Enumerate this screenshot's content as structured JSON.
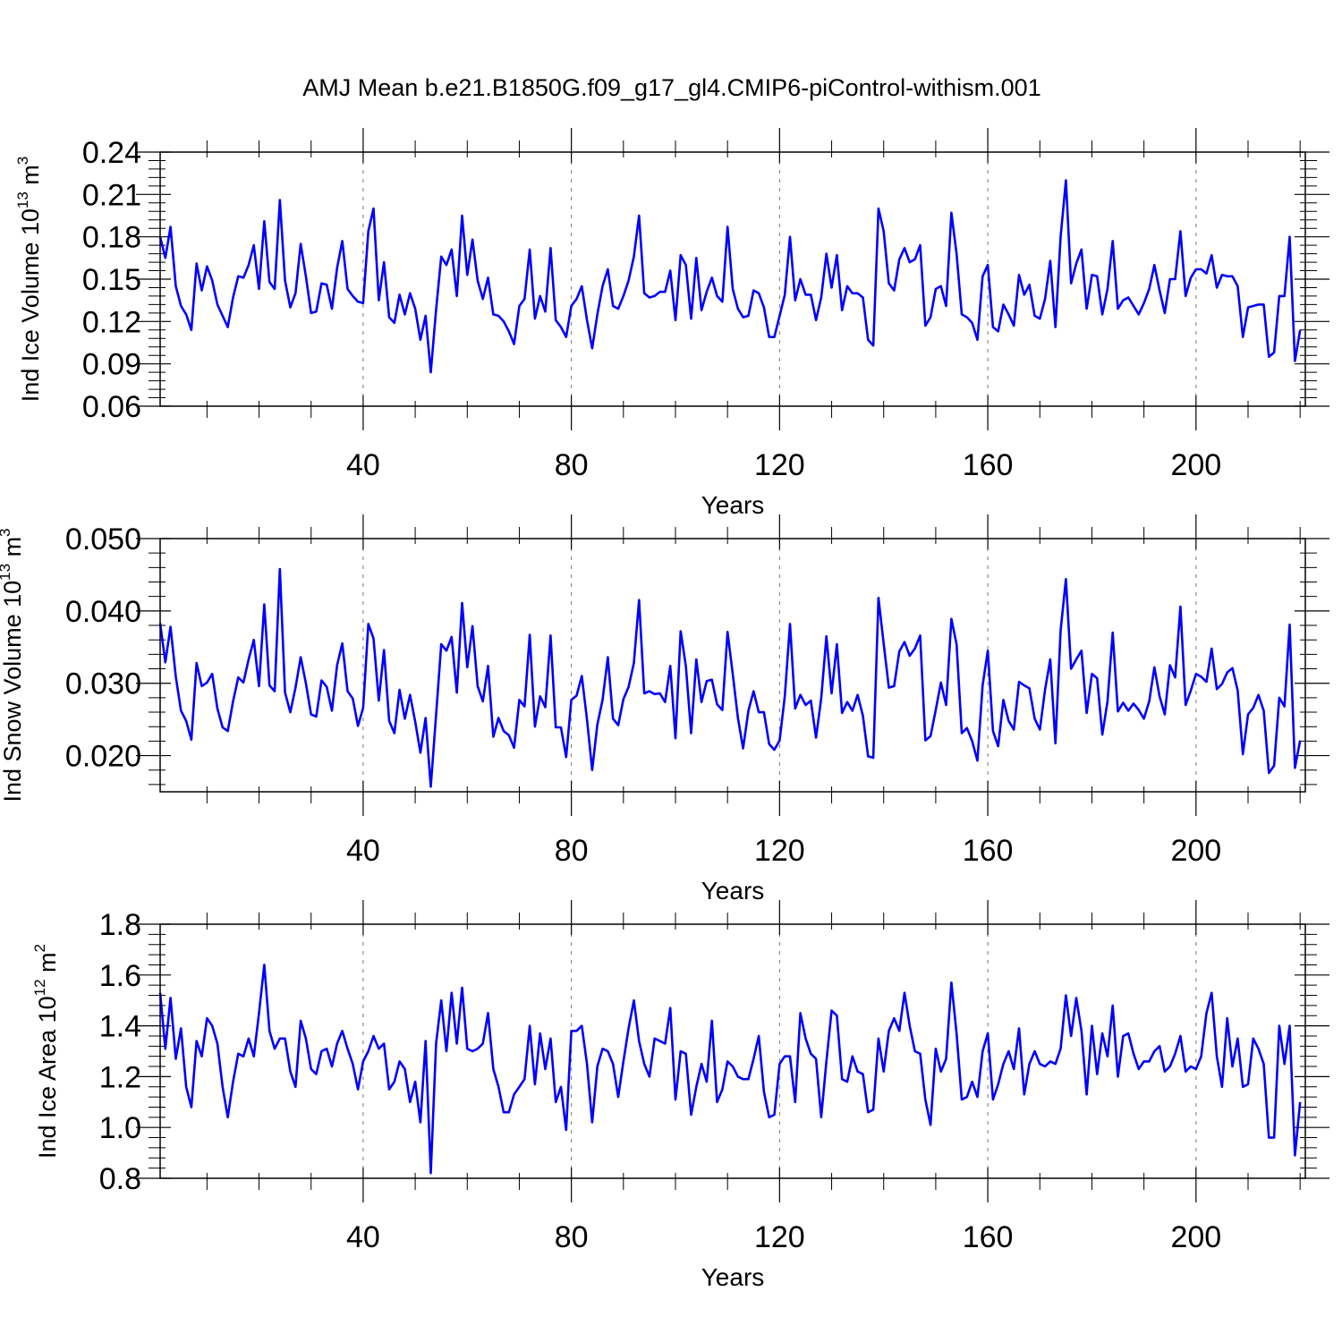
{
  "figure": {
    "title": "AMJ Mean b.e21.B1850G.f09_g17_gl4.CMIP6-piControl-withism.001",
    "line_color": "#0000ff"
  },
  "chart_data": [
    {
      "type": "line",
      "ylabel_main": "Ind Ice Volume 10",
      "ylabel_exp": "13",
      "ylabel_unit": " m",
      "ylabel_unit_exp": "3",
      "xlabel": "Years",
      "xlim": [
        1,
        221
      ],
      "ylim": [
        0.06,
        0.24
      ],
      "yticks": [
        0.06,
        0.09,
        0.12,
        0.15,
        0.18,
        0.21,
        0.24
      ],
      "ytick_labels": [
        "0.06",
        "0.09",
        "0.12",
        "0.15",
        "0.18",
        "0.21",
        "0.24"
      ],
      "xticks": [
        40,
        80,
        120,
        160,
        200
      ],
      "xtick_labels": [
        "40",
        "80",
        "120",
        "160",
        "200"
      ],
      "grid_x": true,
      "series": [
        {
          "name": "Ind Ice Volume",
          "values": [
            0.18,
            0.165,
            0.187,
            0.145,
            0.131,
            0.125,
            0.114,
            0.161,
            0.142,
            0.159,
            0.149,
            0.132,
            0.124,
            0.116,
            0.137,
            0.152,
            0.151,
            0.16,
            0.174,
            0.143,
            0.191,
            0.148,
            0.143,
            0.206,
            0.149,
            0.13,
            0.14,
            0.175,
            0.152,
            0.126,
            0.127,
            0.147,
            0.146,
            0.129,
            0.158,
            0.177,
            0.143,
            0.138,
            0.134,
            0.133,
            0.184,
            0.2,
            0.135,
            0.162,
            0.123,
            0.119,
            0.139,
            0.125,
            0.14,
            0.129,
            0.107,
            0.124,
            0.084,
            0.128,
            0.166,
            0.16,
            0.171,
            0.138,
            0.195,
            0.153,
            0.178,
            0.149,
            0.136,
            0.151,
            0.125,
            0.124,
            0.12,
            0.113,
            0.104,
            0.131,
            0.136,
            0.171,
            0.122,
            0.138,
            0.127,
            0.172,
            0.121,
            0.116,
            0.109,
            0.131,
            0.136,
            0.145,
            0.121,
            0.101,
            0.125,
            0.145,
            0.157,
            0.131,
            0.129,
            0.138,
            0.149,
            0.166,
            0.195,
            0.14,
            0.137,
            0.138,
            0.141,
            0.141,
            0.156,
            0.121,
            0.167,
            0.16,
            0.122,
            0.165,
            0.128,
            0.141,
            0.151,
            0.138,
            0.134,
            0.187,
            0.143,
            0.129,
            0.123,
            0.124,
            0.142,
            0.14,
            0.13,
            0.109,
            0.109,
            0.124,
            0.139,
            0.18,
            0.135,
            0.15,
            0.139,
            0.139,
            0.121,
            0.137,
            0.168,
            0.144,
            0.167,
            0.128,
            0.145,
            0.14,
            0.14,
            0.137,
            0.107,
            0.103,
            0.2,
            0.184,
            0.147,
            0.142,
            0.164,
            0.172,
            0.162,
            0.164,
            0.174,
            0.117,
            0.123,
            0.143,
            0.145,
            0.131,
            0.197,
            0.168,
            0.125,
            0.123,
            0.119,
            0.107,
            0.152,
            0.16,
            0.116,
            0.113,
            0.132,
            0.125,
            0.117,
            0.153,
            0.139,
            0.146,
            0.124,
            0.122,
            0.136,
            0.163,
            0.116,
            0.18,
            0.22,
            0.147,
            0.161,
            0.171,
            0.129,
            0.153,
            0.152,
            0.125,
            0.143,
            0.177,
            0.129,
            0.135,
            0.137,
            0.131,
            0.125,
            0.133,
            0.143,
            0.16,
            0.142,
            0.126,
            0.15,
            0.15,
            0.184,
            0.138,
            0.151,
            0.157,
            0.157,
            0.154,
            0.167,
            0.144,
            0.153,
            0.152,
            0.152,
            0.145,
            0.109,
            0.13,
            0.131,
            0.132,
            0.132,
            0.095,
            0.098,
            0.138,
            0.138,
            0.18,
            0.092,
            0.114
          ]
        }
      ]
    },
    {
      "type": "line",
      "ylabel_main": "Ind Snow Volume 10",
      "ylabel_exp": "13",
      "ylabel_unit": " m",
      "ylabel_unit_exp": "3",
      "xlabel": "Years",
      "xlim": [
        1,
        221
      ],
      "ylim": [
        0.015,
        0.05
      ],
      "yticks": [
        0.02,
        0.03,
        0.04,
        0.05
      ],
      "ytick_labels": [
        "0.020",
        "0.030",
        "0.040",
        "0.050"
      ],
      "xticks": [
        40,
        80,
        120,
        160,
        200
      ],
      "xtick_labels": [
        "40",
        "80",
        "120",
        "160",
        "200"
      ],
      "grid_x": true,
      "series": [
        {
          "name": "Ind Snow Volume",
          "values": [
            0.0383,
            0.0329,
            0.0378,
            0.0309,
            0.0262,
            0.0248,
            0.0222,
            0.0328,
            0.0296,
            0.0301,
            0.0313,
            0.0265,
            0.0239,
            0.0234,
            0.0275,
            0.0308,
            0.0301,
            0.0333,
            0.036,
            0.0296,
            0.0409,
            0.0297,
            0.0289,
            0.0458,
            0.0287,
            0.026,
            0.0294,
            0.0336,
            0.03,
            0.0257,
            0.0254,
            0.0304,
            0.0295,
            0.0262,
            0.0325,
            0.0355,
            0.0289,
            0.0279,
            0.0241,
            0.0266,
            0.0382,
            0.0362,
            0.0276,
            0.0346,
            0.0248,
            0.0231,
            0.0291,
            0.0251,
            0.0284,
            0.0247,
            0.0204,
            0.0252,
            0.0157,
            0.0256,
            0.0354,
            0.0345,
            0.0364,
            0.0287,
            0.0411,
            0.0322,
            0.0379,
            0.0296,
            0.0275,
            0.0324,
            0.0226,
            0.0252,
            0.0234,
            0.0228,
            0.0211,
            0.0277,
            0.0268,
            0.0367,
            0.024,
            0.0282,
            0.0267,
            0.0366,
            0.0239,
            0.0239,
            0.0198,
            0.0277,
            0.0283,
            0.031,
            0.025,
            0.018,
            0.0243,
            0.0277,
            0.0336,
            0.0251,
            0.0242,
            0.0278,
            0.0295,
            0.0328,
            0.0415,
            0.0286,
            0.0289,
            0.0285,
            0.0286,
            0.0274,
            0.0324,
            0.0224,
            0.0372,
            0.0324,
            0.0231,
            0.0333,
            0.0274,
            0.0303,
            0.0305,
            0.0271,
            0.0263,
            0.0371,
            0.0313,
            0.0252,
            0.021,
            0.0262,
            0.0289,
            0.026,
            0.026,
            0.0216,
            0.0208,
            0.0221,
            0.0282,
            0.0382,
            0.0265,
            0.0284,
            0.027,
            0.0276,
            0.0225,
            0.0279,
            0.0365,
            0.0286,
            0.0354,
            0.0259,
            0.0274,
            0.0262,
            0.0284,
            0.0255,
            0.0199,
            0.0197,
            0.0418,
            0.0355,
            0.0294,
            0.0296,
            0.0344,
            0.0357,
            0.0338,
            0.0348,
            0.0366,
            0.0221,
            0.0227,
            0.0263,
            0.0301,
            0.027,
            0.0389,
            0.0354,
            0.0231,
            0.0238,
            0.022,
            0.0193,
            0.0297,
            0.0345,
            0.0234,
            0.0213,
            0.0277,
            0.0248,
            0.0236,
            0.0302,
            0.0297,
            0.0293,
            0.0251,
            0.0236,
            0.0291,
            0.0333,
            0.0217,
            0.0373,
            0.0444,
            0.032,
            0.0333,
            0.0345,
            0.0259,
            0.0313,
            0.0307,
            0.0229,
            0.0275,
            0.037,
            0.0261,
            0.0273,
            0.0262,
            0.0272,
            0.0263,
            0.0251,
            0.0275,
            0.0322,
            0.0282,
            0.0257,
            0.0325,
            0.0308,
            0.0406,
            0.027,
            0.029,
            0.0313,
            0.0309,
            0.0302,
            0.0348,
            0.0292,
            0.0299,
            0.0315,
            0.0321,
            0.029,
            0.0202,
            0.0257,
            0.0266,
            0.0284,
            0.0262,
            0.0176,
            0.0186,
            0.028,
            0.0268,
            0.0381,
            0.0183,
            0.0221
          ]
        }
      ]
    },
    {
      "type": "line",
      "ylabel_main": "Ind Ice Area 10",
      "ylabel_exp": "12",
      "ylabel_unit": " m",
      "ylabel_unit_exp": "2",
      "xlabel": "Years",
      "xlim": [
        1,
        221
      ],
      "ylim": [
        0.8,
        1.8
      ],
      "yticks": [
        0.8,
        1.0,
        1.2,
        1.4,
        1.6,
        1.8
      ],
      "ytick_labels": [
        "0.8",
        "1.0",
        "1.2",
        "1.4",
        "1.6",
        "1.8"
      ],
      "xticks": [
        40,
        80,
        120,
        160,
        200
      ],
      "xtick_labels": [
        "40",
        "80",
        "120",
        "160",
        "200"
      ],
      "grid_x": true,
      "series": [
        {
          "name": "Ind Ice Area",
          "values": [
            1.53,
            1.31,
            1.51,
            1.27,
            1.39,
            1.16,
            1.08,
            1.34,
            1.28,
            1.43,
            1.4,
            1.33,
            1.16,
            1.04,
            1.18,
            1.29,
            1.28,
            1.35,
            1.28,
            1.45,
            1.64,
            1.38,
            1.31,
            1.35,
            1.35,
            1.22,
            1.16,
            1.42,
            1.35,
            1.23,
            1.21,
            1.3,
            1.31,
            1.24,
            1.33,
            1.38,
            1.31,
            1.25,
            1.15,
            1.26,
            1.3,
            1.36,
            1.31,
            1.33,
            1.15,
            1.18,
            1.26,
            1.23,
            1.1,
            1.18,
            1.02,
            1.34,
            0.82,
            1.33,
            1.5,
            1.3,
            1.53,
            1.33,
            1.55,
            1.31,
            1.3,
            1.31,
            1.33,
            1.45,
            1.23,
            1.16,
            1.06,
            1.06,
            1.13,
            1.16,
            1.19,
            1.4,
            1.17,
            1.37,
            1.23,
            1.35,
            1.1,
            1.16,
            0.99,
            1.38,
            1.38,
            1.4,
            1.25,
            1.02,
            1.24,
            1.31,
            1.3,
            1.25,
            1.12,
            1.26,
            1.39,
            1.5,
            1.34,
            1.25,
            1.2,
            1.35,
            1.34,
            1.33,
            1.47,
            1.11,
            1.3,
            1.29,
            1.05,
            1.16,
            1.25,
            1.18,
            1.42,
            1.1,
            1.15,
            1.26,
            1.24,
            1.2,
            1.19,
            1.19,
            1.27,
            1.36,
            1.14,
            1.04,
            1.05,
            1.25,
            1.28,
            1.28,
            1.1,
            1.45,
            1.35,
            1.29,
            1.27,
            1.04,
            1.26,
            1.46,
            1.44,
            1.19,
            1.18,
            1.28,
            1.22,
            1.21,
            1.06,
            1.07,
            1.35,
            1.22,
            1.38,
            1.43,
            1.38,
            1.53,
            1.4,
            1.3,
            1.29,
            1.11,
            1.01,
            1.31,
            1.22,
            1.27,
            1.57,
            1.37,
            1.11,
            1.12,
            1.18,
            1.12,
            1.3,
            1.37,
            1.11,
            1.17,
            1.25,
            1.3,
            1.23,
            1.39,
            1.13,
            1.25,
            1.3,
            1.25,
            1.24,
            1.26,
            1.25,
            1.31,
            1.52,
            1.36,
            1.51,
            1.38,
            1.13,
            1.4,
            1.21,
            1.37,
            1.28,
            1.48,
            1.2,
            1.36,
            1.37,
            1.29,
            1.23,
            1.26,
            1.26,
            1.3,
            1.32,
            1.22,
            1.24,
            1.29,
            1.36,
            1.22,
            1.24,
            1.23,
            1.28,
            1.45,
            1.53,
            1.28,
            1.16,
            1.43,
            1.24,
            1.35,
            1.16,
            1.17,
            1.35,
            1.31,
            1.25,
            0.96,
            0.96,
            1.4,
            1.25,
            1.4,
            0.89,
            1.1
          ]
        }
      ]
    }
  ]
}
